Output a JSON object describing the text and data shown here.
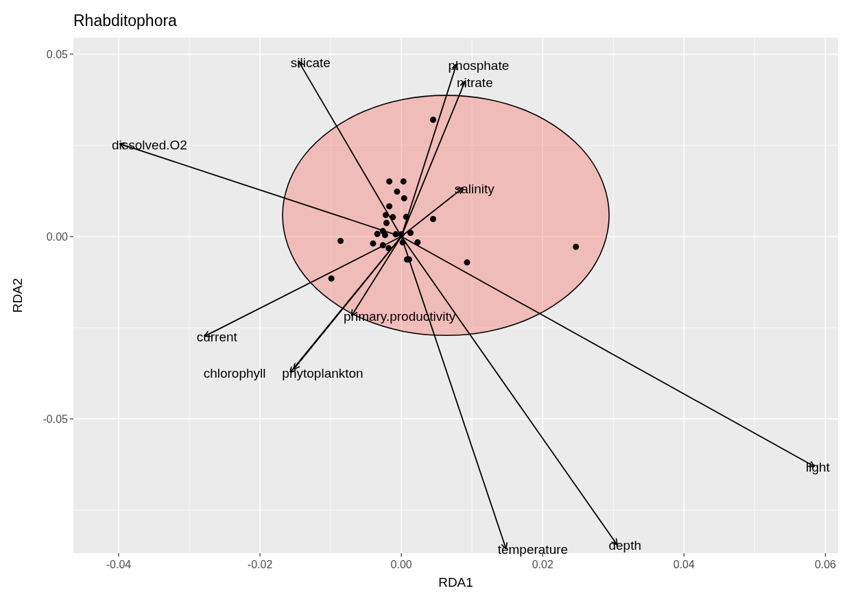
{
  "chart_data": {
    "type": "scatter",
    "title": "Rhabditophora",
    "xlabel": "RDA1",
    "ylabel": "RDA2",
    "xlim": [
      -0.0464,
      0.0618
    ],
    "ylim": [
      -0.0868,
      0.0545
    ],
    "xticks": [
      {
        "value": -0.04,
        "label": "-0.04"
      },
      {
        "value": -0.02,
        "label": "-0.02"
      },
      {
        "value": 0,
        "label": "0.00"
      },
      {
        "value": 0.02,
        "label": "0.02"
      },
      {
        "value": 0.04,
        "label": "0.04"
      },
      {
        "value": 0.06,
        "label": "0.06"
      }
    ],
    "yticks": [
      {
        "value": -0.05,
        "label": "-0.05"
      },
      {
        "value": 0,
        "label": "0.00"
      },
      {
        "value": 0.05,
        "label": "0.05"
      }
    ],
    "grid": true,
    "series": [
      {
        "type": "area",
        "color": "#f8766d",
        "x": [
          0.0294,
          0.0286,
          0.0263,
          0.0226,
          0.0179,
          0.0123,
          0.0063,
          0.0003,
          -0.0053,
          -0.01,
          -0.0137,
          -0.016,
          -0.0168,
          -0.016,
          -0.0137,
          -0.01,
          -0.0053,
          0.0003,
          0.0063,
          0.0123,
          0.0179,
          0.0226,
          0.0263,
          0.0286
        ],
        "values": [
          0.0058,
          0.0143,
          0.0223,
          0.0291,
          0.0343,
          0.0376,
          0.0387,
          0.0376,
          0.0343,
          0.0291,
          0.0223,
          0.0143,
          0.0058,
          -0.0027,
          -0.0107,
          -0.0175,
          -0.0227,
          -0.026,
          -0.0271,
          -0.026,
          -0.0227,
          -0.0175,
          -0.0107,
          -0.0027
        ]
      },
      {
        "marker": "circle",
        "color": "#000000",
        "x": [
          0.0045,
          -0.0017,
          0.0003,
          -0.0006,
          0.0004,
          -0.0017,
          -0.0022,
          -0.0012,
          0.0007,
          -0.0021,
          0.0045,
          -0.0026,
          -0.0034,
          -0.0023,
          -0.0008,
          0.0,
          0.0013,
          -0.0086,
          -0.004,
          -0.0026,
          -0.0018,
          0.0002,
          0.0023,
          0.0247,
          0.0093,
          0.0008,
          0.0011,
          -0.0099
        ],
        "values": [
          0.032,
          0.0151,
          0.0151,
          0.0123,
          0.0105,
          0.0083,
          0.0059,
          0.0053,
          0.0054,
          0.0037,
          0.0048,
          0.0015,
          0.0007,
          0.0004,
          0.0006,
          0.0006,
          0.001,
          -0.0012,
          -0.0019,
          -0.0024,
          -0.0032,
          -0.0016,
          -0.0016,
          -0.0028,
          -0.0071,
          -0.0063,
          -0.0063,
          -0.0115
        ]
      },
      {
        "type": "line",
        "name": "silicate",
        "color": "#000000",
        "x": [
          0,
          -0.0145
        ],
        "values": [
          0,
          0.0479
        ]
      },
      {
        "type": "line",
        "name": "phosphate",
        "color": "#000000",
        "x": [
          0,
          0.0078
        ],
        "values": [
          0,
          0.0472
        ]
      },
      {
        "type": "line",
        "name": "nitrate",
        "color": "#000000",
        "x": [
          0,
          0.009
        ],
        "values": [
          0,
          0.0425
        ]
      },
      {
        "type": "line",
        "name": "dissolved.O2",
        "color": "#000000",
        "x": [
          0,
          -0.0398
        ],
        "values": [
          0,
          0.0254
        ]
      },
      {
        "type": "line",
        "name": "salinity",
        "color": "#000000",
        "x": [
          0,
          0.0087
        ],
        "values": [
          0,
          0.0133
        ]
      },
      {
        "type": "line",
        "name": "primary.productivity",
        "color": "#000000",
        "x": [
          0,
          -0.007
        ],
        "values": [
          0,
          -0.0216
        ]
      },
      {
        "type": "line",
        "name": "current",
        "color": "#000000",
        "x": [
          0,
          -0.0278
        ],
        "values": [
          0,
          -0.0273
        ]
      },
      {
        "type": "line",
        "name": "phytoplankton",
        "color": "#000000",
        "x": [
          0,
          -0.0157
        ],
        "values": [
          0,
          -0.0372
        ]
      },
      {
        "type": "line",
        "name": "chlorophyll",
        "color": "#000000",
        "x": [
          0,
          -0.0152
        ],
        "values": [
          0,
          -0.0363
        ]
      },
      {
        "type": "line",
        "name": "light",
        "color": "#000000",
        "x": [
          0,
          0.0584
        ],
        "values": [
          0,
          -0.063
        ]
      },
      {
        "type": "line",
        "name": "temperature",
        "color": "#000000",
        "x": [
          0,
          0.0148
        ],
        "values": [
          0,
          -0.0855
        ]
      },
      {
        "type": "line",
        "name": "depth",
        "color": "#000000",
        "x": [
          0,
          0.0305
        ],
        "values": [
          0,
          -0.0844
        ]
      }
    ]
  }
}
